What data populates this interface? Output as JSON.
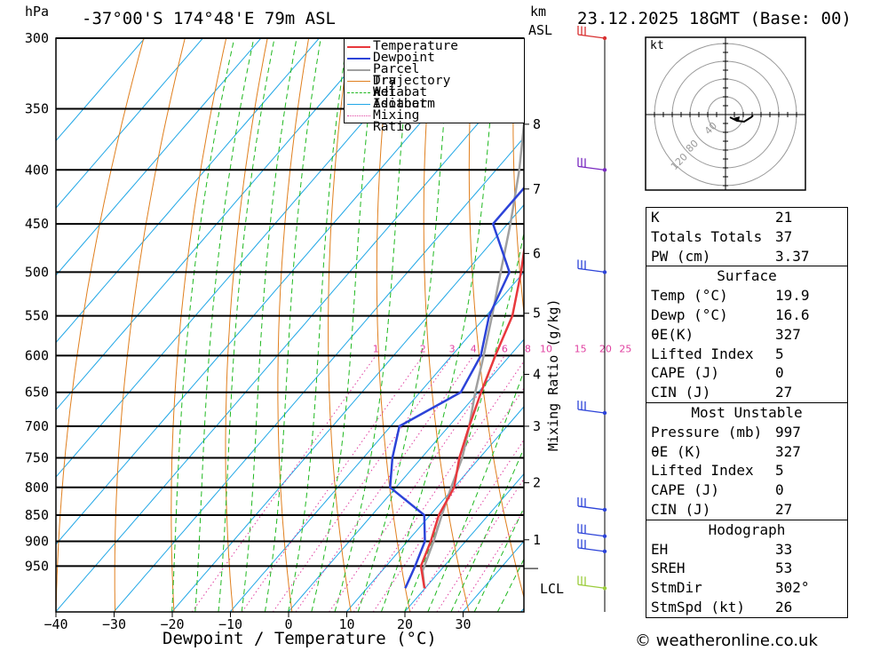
{
  "header": {
    "hpa_unit": "hPa",
    "location": "-37°00'S  174°48'E  79m  ASL",
    "km_unit": "km",
    "asl_label": "ASL",
    "datetime": "23.12.2025  18GMT  (Base: 00)"
  },
  "chart_data": {
    "type": "skew-t",
    "xlabel": "Dewpoint / Temperature (°C)",
    "x_ticks": [
      -40,
      -30,
      -20,
      -10,
      0,
      10,
      20,
      30
    ],
    "x_tick_labels": [
      "−40",
      "−30",
      "−20",
      "−10",
      "0",
      "10",
      "20",
      "30"
    ],
    "pressure_levels": [
      300,
      350,
      400,
      450,
      500,
      550,
      600,
      650,
      700,
      750,
      800,
      850,
      900,
      950
    ],
    "height_km_labels": [
      {
        "km": "8",
        "p": 362
      },
      {
        "km": "7",
        "p": 417
      },
      {
        "km": "6",
        "p": 480
      },
      {
        "km": "5",
        "p": 547
      },
      {
        "km": "4",
        "p": 625
      },
      {
        "km": "3",
        "p": 700
      },
      {
        "km": "2",
        "p": 792
      },
      {
        "km": "1",
        "p": 897
      }
    ],
    "lcl_label": "LCL",
    "lcl_pressure": 955,
    "mixing_ratio_label": "Mixing Ratio (g/kg)",
    "mixing_ratio_values": [
      1,
      2,
      3,
      4,
      6,
      8,
      10,
      15,
      20,
      25
    ],
    "mixing_ratio_labels": [
      "1",
      "2",
      "3",
      "4",
      "6",
      "8",
      "10",
      "15",
      "20",
      "25"
    ],
    "legend": [
      "Temperature",
      "Dewpoint",
      "Parcel Trajectory",
      "Dry Adiabat",
      "Wet Adiabat",
      "Isotherm",
      "Mixing Ratio"
    ],
    "series": [
      {
        "name": "Temperature",
        "color": "#e8383c",
        "points": [
          [
            997,
            19.9
          ],
          [
            950,
            16.0
          ],
          [
            900,
            14.0
          ],
          [
            850,
            11.5
          ],
          [
            800,
            10.0
          ],
          [
            750,
            6.5
          ],
          [
            700,
            3.5
          ],
          [
            650,
            0.5
          ],
          [
            600,
            -2.5
          ],
          [
            550,
            -5.5
          ],
          [
            500,
            -10.5
          ],
          [
            450,
            -16.5
          ],
          [
            400,
            -22.5
          ],
          [
            350,
            -30.5
          ],
          [
            300,
            -40.5
          ]
        ]
      },
      {
        "name": "Dewpoint",
        "color": "#2c43d8",
        "points": [
          [
            997,
            16.6
          ],
          [
            950,
            15.0
          ],
          [
            900,
            13.0
          ],
          [
            850,
            9.0
          ],
          [
            800,
            -1.0
          ],
          [
            750,
            -5.0
          ],
          [
            700,
            -8.5
          ],
          [
            650,
            -3.0
          ],
          [
            600,
            -5.0
          ],
          [
            550,
            -9.5
          ],
          [
            500,
            -12.5
          ],
          [
            450,
            -22.5
          ],
          [
            400,
            -22.5
          ],
          [
            350,
            -32.0
          ],
          [
            300,
            -44.0
          ]
        ]
      },
      {
        "name": "Parcel Trajectory",
        "color": "#a0a0a0",
        "points": [
          [
            997,
            19.9
          ],
          [
            960,
            17.0
          ],
          [
            900,
            14.5
          ],
          [
            850,
            12.0
          ],
          [
            800,
            9.5
          ],
          [
            750,
            7.0
          ],
          [
            700,
            3.5
          ],
          [
            650,
            -0.5
          ],
          [
            600,
            -4.5
          ],
          [
            550,
            -9.0
          ],
          [
            500,
            -14.0
          ],
          [
            450,
            -19.5
          ],
          [
            400,
            -26.0
          ],
          [
            350,
            -34.0
          ],
          [
            300,
            -43.5
          ]
        ]
      }
    ],
    "wind_barbs_pressure": [
      300,
      400,
      500,
      680,
      840,
      890,
      920,
      997
    ],
    "hodograph": {
      "unit": "kt",
      "ring_labels": [
        "40",
        "80",
        "120"
      ]
    }
  },
  "stats": {
    "top": [
      {
        "k": "K",
        "v": "21"
      },
      {
        "k": "Totals Totals",
        "v": "37"
      },
      {
        "k": "PW (cm)",
        "v": "3.37"
      }
    ],
    "surface": {
      "title": "Surface",
      "rows": [
        {
          "k": "Temp (°C)",
          "v": "19.9"
        },
        {
          "k": "Dewp (°C)",
          "v": "16.6"
        },
        {
          "k": "θE(K)",
          "v": "327"
        },
        {
          "k": "Lifted Index",
          "v": "5"
        },
        {
          "k": "CAPE (J)",
          "v": "0"
        },
        {
          "k": "CIN (J)",
          "v": "27"
        }
      ]
    },
    "most_unstable": {
      "title": "Most Unstable",
      "rows": [
        {
          "k": "Pressure (mb)",
          "v": "997"
        },
        {
          "k": "θE (K)",
          "v": "327"
        },
        {
          "k": "Lifted Index",
          "v": "5"
        },
        {
          "k": "CAPE (J)",
          "v": "0"
        },
        {
          "k": "CIN (J)",
          "v": "27"
        }
      ]
    },
    "hodograph": {
      "title": "Hodograph",
      "rows": [
        {
          "k": "EH",
          "v": "33"
        },
        {
          "k": "SREH",
          "v": "53"
        },
        {
          "k": "StmDir",
          "v": "302°"
        },
        {
          "k": "StmSpd (kt)",
          "v": "26"
        }
      ]
    }
  },
  "footer": {
    "copyright": "© weatheronline.co.uk"
  },
  "colors": {
    "temperature": "#e8383c",
    "dewpoint": "#2c43d8",
    "parcel": "#a0a0a0",
    "dry_adiabat": "#e07f1e",
    "wet_adiabat": "#1fb81f",
    "isotherm": "#21a7e6",
    "mixing_ratio": "#e040a0",
    "barb": "#7a2ac0"
  }
}
